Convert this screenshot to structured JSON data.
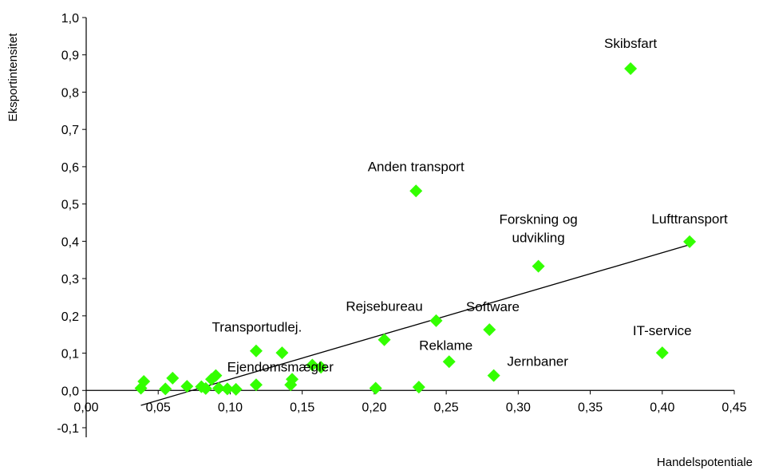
{
  "chart_data": {
    "type": "scatter",
    "xlabel": "Handelspotentiale",
    "ylabel": "Eksportintensitet",
    "xlim": [
      0,
      0.45
    ],
    "ylim": [
      -0.1,
      1.0
    ],
    "x_ticks": [
      "0,00",
      "0,05",
      "0,10",
      "0,15",
      "0,20",
      "0,25",
      "0,30",
      "0,35",
      "0,40",
      "0,45"
    ],
    "y_ticks": [
      "1,0",
      "0,9",
      "0,8",
      "0,7",
      "0,6",
      "0,5",
      "0,4",
      "0,3",
      "0,2",
      "0,1",
      "0,0",
      "-0,1"
    ],
    "marker_color": "#33ff00",
    "trendline": {
      "x": [
        0.038,
        0.42
      ],
      "y": [
        -0.04,
        0.392
      ]
    },
    "points": [
      {
        "x": 0.378,
        "y": 0.863,
        "label": "Skibsfart"
      },
      {
        "x": 0.229,
        "y": 0.535,
        "label": "Anden transport"
      },
      {
        "x": 0.419,
        "y": 0.399,
        "label": "Lufttransport"
      },
      {
        "x": 0.314,
        "y": 0.333,
        "label": "Forskning og udvikling"
      },
      {
        "x": 0.243,
        "y": 0.187,
        "label": "Software"
      },
      {
        "x": 0.207,
        "y": 0.136,
        "label": "Rejsebureau"
      },
      {
        "x": 0.28,
        "y": 0.163,
        "label": ""
      },
      {
        "x": 0.4,
        "y": 0.101,
        "label": "IT-service"
      },
      {
        "x": 0.252,
        "y": 0.077,
        "label": "Reklame"
      },
      {
        "x": 0.283,
        "y": 0.04,
        "label": "Jernbaner"
      },
      {
        "x": 0.118,
        "y": 0.106,
        "label": "Transportudlej."
      },
      {
        "x": 0.136,
        "y": 0.101,
        "label": ""
      },
      {
        "x": 0.157,
        "y": 0.068,
        "label": "Ejendomsmægler"
      },
      {
        "x": 0.163,
        "y": 0.062,
        "label": ""
      },
      {
        "x": 0.143,
        "y": 0.03,
        "label": ""
      },
      {
        "x": 0.142,
        "y": 0.015,
        "label": ""
      },
      {
        "x": 0.118,
        "y": 0.015,
        "label": ""
      },
      {
        "x": 0.201,
        "y": 0.006,
        "label": ""
      },
      {
        "x": 0.231,
        "y": 0.009,
        "label": ""
      },
      {
        "x": 0.04,
        "y": 0.024,
        "label": ""
      },
      {
        "x": 0.038,
        "y": 0.006,
        "label": ""
      },
      {
        "x": 0.055,
        "y": 0.004,
        "label": ""
      },
      {
        "x": 0.06,
        "y": 0.033,
        "label": ""
      },
      {
        "x": 0.07,
        "y": 0.011,
        "label": ""
      },
      {
        "x": 0.08,
        "y": 0.01,
        "label": ""
      },
      {
        "x": 0.083,
        "y": 0.005,
        "label": ""
      },
      {
        "x": 0.087,
        "y": 0.03,
        "label": ""
      },
      {
        "x": 0.09,
        "y": 0.04,
        "label": ""
      },
      {
        "x": 0.092,
        "y": 0.006,
        "label": ""
      },
      {
        "x": 0.098,
        "y": 0.004,
        "label": ""
      },
      {
        "x": 0.104,
        "y": 0.003,
        "label": ""
      }
    ]
  }
}
